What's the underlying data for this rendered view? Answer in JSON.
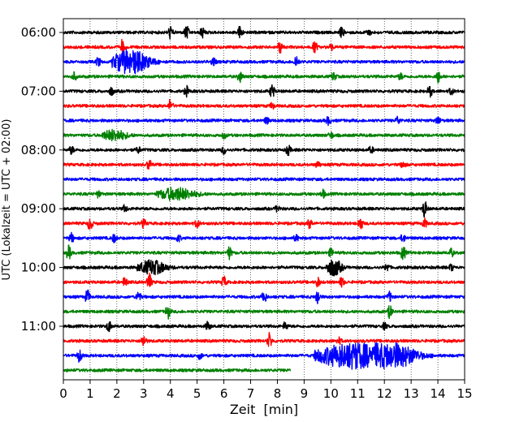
{
  "chart_data": {
    "type": "line",
    "subtype": "helicorder seismogram",
    "xlabel": "Zeit  [min]",
    "ylabel": "UTC (Lokalzeit = UTC + 02:00)",
    "xlim": [
      0,
      15
    ],
    "x_ticks": [
      0,
      1,
      2,
      3,
      4,
      5,
      6,
      7,
      8,
      9,
      10,
      11,
      12,
      13,
      14,
      15
    ],
    "y_tick_labels": [
      "06:00",
      "07:00",
      "08:00",
      "09:00",
      "10:00",
      "11:00"
    ],
    "trace_start_time": "06:00",
    "trace_interval_min": 15,
    "grid": "vertical dotted lines at each minute",
    "trace_color_cycle": [
      "#000000",
      "#ff0000",
      "#0000ff",
      "#008000"
    ],
    "traces": [
      {
        "start": "06:00",
        "end_min": 15,
        "events": [
          {
            "t": 4.0,
            "a": 0.8
          },
          {
            "t": 4.6,
            "a": 0.9
          },
          {
            "t": 5.2,
            "a": 0.7
          },
          {
            "t": 6.6,
            "a": 0.8
          },
          {
            "t": 10.4,
            "a": 0.6
          },
          {
            "t": 11.4,
            "a": 0.4
          }
        ]
      },
      {
        "start": "06:15",
        "end_min": 15,
        "events": [
          {
            "t": 2.2,
            "a": 0.9
          },
          {
            "t": 8.1,
            "a": 0.8
          },
          {
            "t": 9.4,
            "a": 0.7
          },
          {
            "t": 10.0,
            "a": 0.4
          }
        ]
      },
      {
        "start": "06:30",
        "end_min": 15,
        "events": [
          {
            "t": 1.3,
            "a": 0.6
          },
          {
            "t": 2.5,
            "a": 1.6,
            "dur": 1.2
          },
          {
            "t": 5.6,
            "a": 0.5
          },
          {
            "t": 8.7,
            "a": 0.8
          }
        ]
      },
      {
        "start": "06:45",
        "end_min": 15,
        "events": [
          {
            "t": 0.4,
            "a": 0.5
          },
          {
            "t": 6.6,
            "a": 0.7
          },
          {
            "t": 10.1,
            "a": 0.5
          },
          {
            "t": 12.6,
            "a": 0.4
          },
          {
            "t": 14.0,
            "a": 0.8
          }
        ]
      },
      {
        "start": "07:00",
        "end_min": 15,
        "events": [
          {
            "t": 1.8,
            "a": 0.5
          },
          {
            "t": 4.6,
            "a": 0.6
          },
          {
            "t": 7.8,
            "a": 0.9
          },
          {
            "t": 13.7,
            "a": 0.7
          },
          {
            "t": 14.5,
            "a": 0.4
          }
        ]
      },
      {
        "start": "07:15",
        "end_min": 15,
        "events": [
          {
            "t": 4.0,
            "a": 0.8
          },
          {
            "t": 7.8,
            "a": 0.4
          }
        ]
      },
      {
        "start": "07:30",
        "end_min": 15,
        "events": [
          {
            "t": 7.6,
            "a": 0.4
          },
          {
            "t": 9.9,
            "a": 0.5
          },
          {
            "t": 12.5,
            "a": 0.5
          },
          {
            "t": 14.0,
            "a": 0.5
          }
        ]
      },
      {
        "start": "07:45",
        "end_min": 15,
        "events": [
          {
            "t": 1.9,
            "a": 0.7,
            "dur": 0.8
          },
          {
            "t": 6.0,
            "a": 0.4
          },
          {
            "t": 10.0,
            "a": 0.4
          }
        ]
      },
      {
        "start": "08:00",
        "end_min": 15,
        "events": [
          {
            "t": 0.3,
            "a": 0.5
          },
          {
            "t": 2.8,
            "a": 0.4
          },
          {
            "t": 6.0,
            "a": 0.5
          },
          {
            "t": 8.4,
            "a": 0.7
          },
          {
            "t": 11.5,
            "a": 0.4
          }
        ]
      },
      {
        "start": "08:15",
        "end_min": 15,
        "events": [
          {
            "t": 3.2,
            "a": 0.7
          },
          {
            "t": 9.5,
            "a": 0.4
          },
          {
            "t": 12.7,
            "a": 0.4
          }
        ]
      },
      {
        "start": "08:30",
        "end_min": 15,
        "events": []
      },
      {
        "start": "08:45",
        "end_min": 15,
        "events": [
          {
            "t": 1.3,
            "a": 0.4
          },
          {
            "t": 4.2,
            "a": 0.8,
            "dur": 1.2
          },
          {
            "t": 9.7,
            "a": 0.5
          }
        ]
      },
      {
        "start": "09:00",
        "end_min": 15,
        "events": [
          {
            "t": 2.3,
            "a": 0.4
          },
          {
            "t": 8.0,
            "a": 0.4
          },
          {
            "t": 13.5,
            "a": 1.1
          }
        ]
      },
      {
        "start": "09:15",
        "end_min": 15,
        "events": [
          {
            "t": 1.0,
            "a": 0.9
          },
          {
            "t": 3.0,
            "a": 0.5
          },
          {
            "t": 5.0,
            "a": 0.5
          },
          {
            "t": 9.2,
            "a": 0.6
          },
          {
            "t": 11.1,
            "a": 0.9
          },
          {
            "t": 13.5,
            "a": 0.6
          }
        ]
      },
      {
        "start": "09:30",
        "end_min": 15,
        "events": [
          {
            "t": 0.3,
            "a": 0.6
          },
          {
            "t": 1.9,
            "a": 0.5
          },
          {
            "t": 4.3,
            "a": 0.4
          },
          {
            "t": 8.7,
            "a": 0.4
          },
          {
            "t": 12.7,
            "a": 0.5
          }
        ]
      },
      {
        "start": "09:45",
        "end_min": 15,
        "events": [
          {
            "t": 0.2,
            "a": 0.9
          },
          {
            "t": 6.2,
            "a": 0.8
          },
          {
            "t": 10.0,
            "a": 0.5
          },
          {
            "t": 12.7,
            "a": 0.9
          },
          {
            "t": 14.5,
            "a": 0.5
          }
        ]
      },
      {
        "start": "10:00",
        "end_min": 15,
        "events": [
          {
            "t": 3.3,
            "a": 0.9,
            "dur": 0.9
          },
          {
            "t": 10.1,
            "a": 1.1,
            "dur": 0.5
          },
          {
            "t": 12.1,
            "a": 0.5
          },
          {
            "t": 14.5,
            "a": 0.4
          }
        ]
      },
      {
        "start": "10:15",
        "end_min": 15,
        "events": [
          {
            "t": 2.3,
            "a": 0.6
          },
          {
            "t": 3.2,
            "a": 1.2
          },
          {
            "t": 6.0,
            "a": 0.7
          },
          {
            "t": 9.5,
            "a": 0.6
          },
          {
            "t": 10.4,
            "a": 0.6
          }
        ]
      },
      {
        "start": "10:30",
        "end_min": 15,
        "events": [
          {
            "t": 0.9,
            "a": 0.9
          },
          {
            "t": 2.8,
            "a": 0.7
          },
          {
            "t": 7.5,
            "a": 0.8
          },
          {
            "t": 9.5,
            "a": 1.0
          },
          {
            "t": 12.2,
            "a": 0.6
          }
        ]
      },
      {
        "start": "10:45",
        "end_min": 15,
        "events": [
          {
            "t": 3.9,
            "a": 0.9
          },
          {
            "t": 12.2,
            "a": 0.8
          }
        ]
      },
      {
        "start": "11:00",
        "end_min": 15,
        "events": [
          {
            "t": 1.7,
            "a": 0.7
          },
          {
            "t": 5.4,
            "a": 0.6
          },
          {
            "t": 8.3,
            "a": 0.5
          },
          {
            "t": 12.0,
            "a": 0.4
          }
        ]
      },
      {
        "start": "11:15",
        "end_min": 15,
        "events": [
          {
            "t": 3.0,
            "a": 0.8
          },
          {
            "t": 7.7,
            "a": 1.0
          },
          {
            "t": 10.3,
            "a": 0.4
          }
        ]
      },
      {
        "start": "11:30",
        "end_min": 15,
        "events": [
          {
            "t": 0.6,
            "a": 0.8
          },
          {
            "t": 5.1,
            "a": 0.4
          },
          {
            "t": 10.8,
            "a": 1.7,
            "dur": 2.4
          },
          {
            "t": 12.5,
            "a": 1.2,
            "dur": 1.4
          }
        ]
      },
      {
        "start": "11:45",
        "end_min": 8.5,
        "events": []
      }
    ]
  }
}
